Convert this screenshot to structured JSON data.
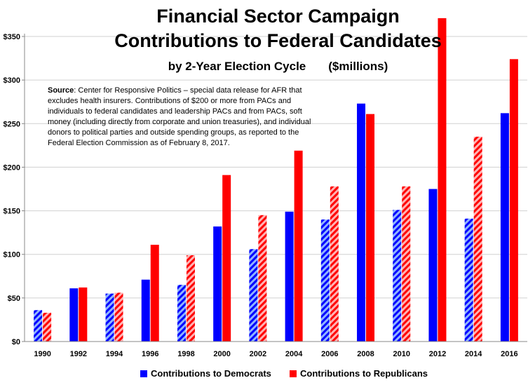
{
  "chart_data": {
    "type": "bar",
    "title": "Financial Sector Campaign Contributions to Federal Candidates",
    "subtitle": "by 2-Year Election Cycle",
    "units": "($millions)",
    "categories": [
      "1990",
      "1992",
      "1994",
      "1996",
      "1998",
      "2000",
      "2002",
      "2004",
      "2006",
      "2008",
      "2010",
      "2012",
      "2014",
      "2016"
    ],
    "series": [
      {
        "name": "Contributions to Democrats",
        "color": "#0000ff",
        "values": [
          36,
          61,
          55,
          71,
          65,
          132,
          106,
          149,
          140,
          273,
          151,
          175,
          141,
          262
        ]
      },
      {
        "name": "Contributions to Republicans",
        "color": "#ff0000",
        "values": [
          33,
          62,
          56,
          111,
          99,
          191,
          145,
          219,
          178,
          261,
          178,
          371,
          235,
          324
        ]
      }
    ],
    "hatched": [
      "1990",
      "1994",
      "1998",
      "2002",
      "2006",
      "2010",
      "2014"
    ],
    "ylim": [
      0,
      350
    ],
    "yticks": [
      "$0",
      "$50",
      "$100",
      "$150",
      "$200",
      "$250",
      "$300",
      "$350"
    ],
    "ytick_values": [
      0,
      50,
      100,
      150,
      200,
      250,
      300,
      350
    ],
    "grid": true,
    "legend": "bottom",
    "xlabel": "",
    "ylabel": ""
  },
  "title_line1": "Financial Sector Campaign",
  "title_line2": "Contributions to Federal Candidates",
  "subtitle": "by 2-Year Election Cycle",
  "units": "($millions)",
  "source": {
    "label": "Source",
    "text": ": Center for Responsive Politics – special data release for AFR that excludes health insurers. Contributions of $200 or more from PACs and individuals to federal candidates and leadership PACs and from PACs, soft money (including directly from corporate and union treasuries), and individual donors to political parties and outside spending groups, as reported to the Federal Election Commission as of February 8, 2017."
  }
}
